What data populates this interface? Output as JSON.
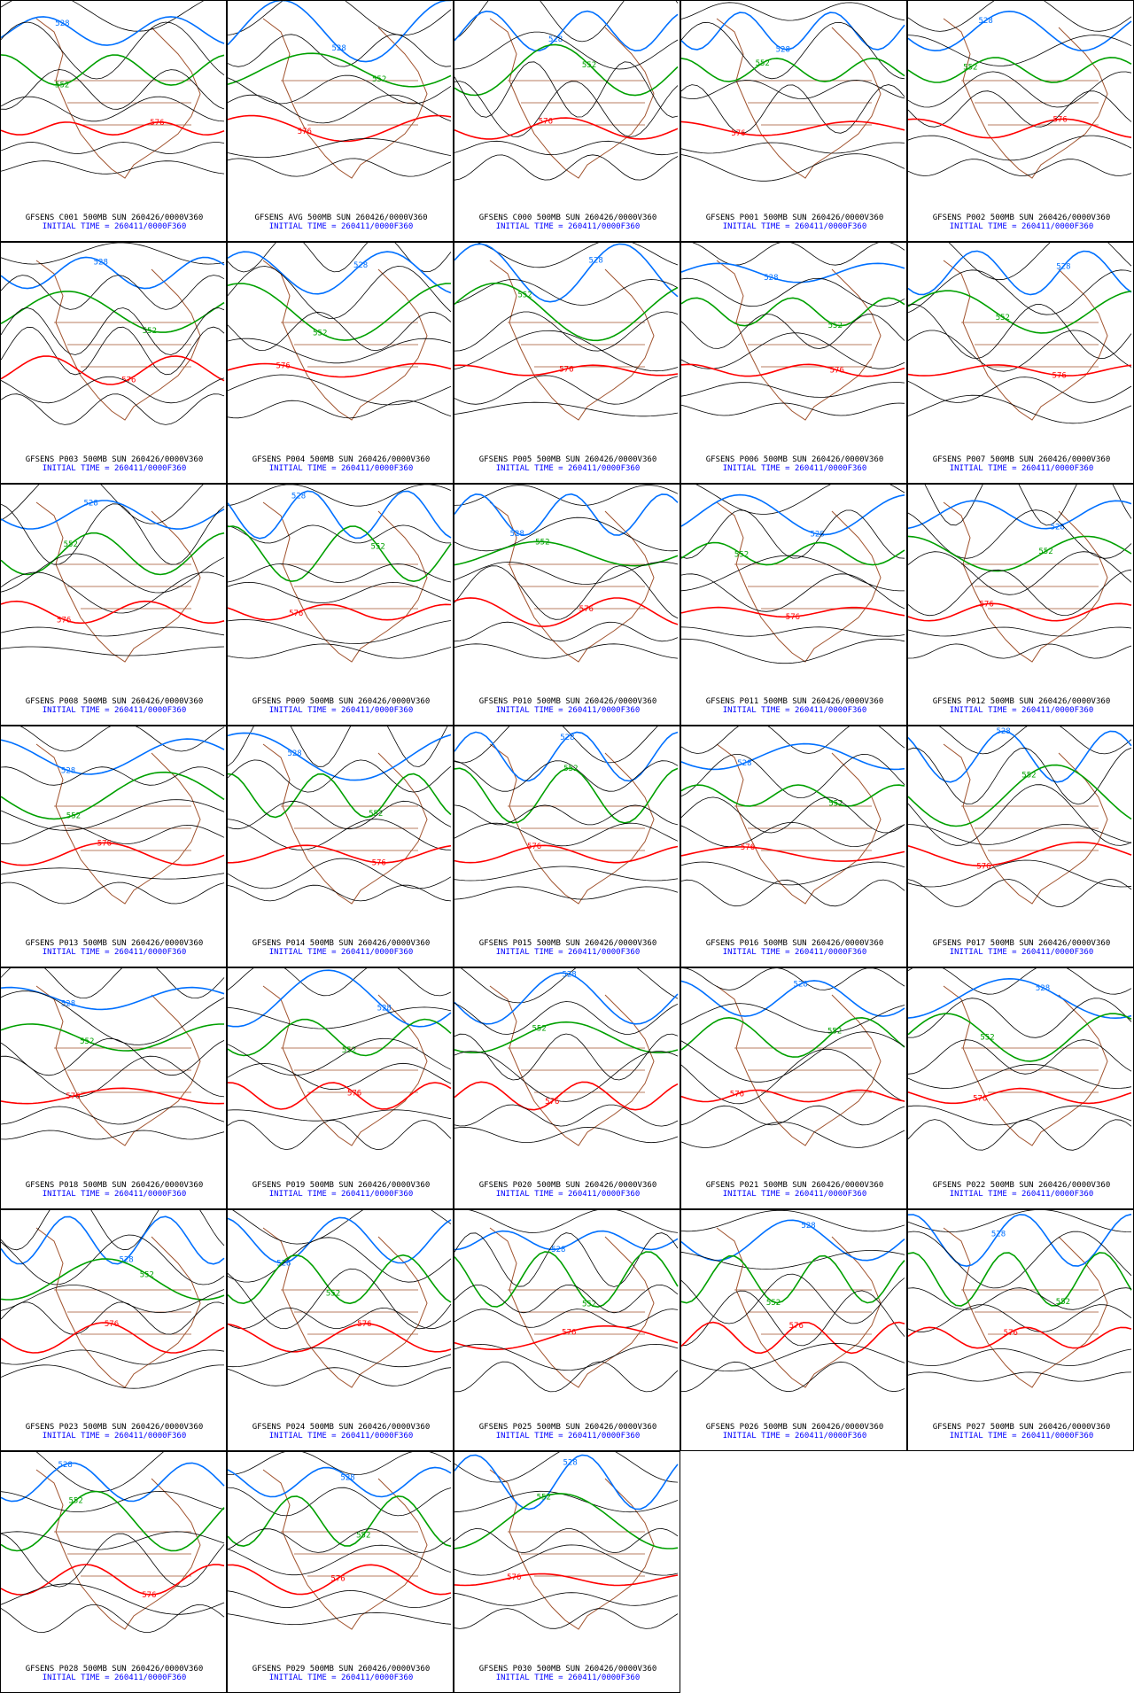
{
  "panels": [
    "GFSENS C001 500MB SUN 260426/0000V360",
    "GFSENS AVG 500MB SUN 260426/0000V360",
    "GFSENS C000 500MB SUN 260426/0000V360",
    "GFSENS P001 500MB SUN 260426/0000V360",
    "GFSENS P002 500MB SUN 260426/0000V360",
    "GFSENS P003 500MB SUN 260426/0000V360",
    "GFSENS P004 500MB SUN 260426/0000V360",
    "GFSENS P005 500MB SUN 260426/0000V360",
    "GFSENS P006 500MB SUN 260426/0000V360",
    "GFSENS P007 500MB SUN 260426/0000V360",
    "GFSENS P008 500MB SUN 260426/0000V360",
    "GFSENS P009 500MB SUN 260426/0000V360",
    "GFSENS P010 500MB SUN 260426/0000V360",
    "GFSENS P011 500MB SUN 260426/0000V360",
    "GFSENS P012 500MB SUN 260426/0000V360",
    "GFSENS P013 500MB SUN 260426/0000V360",
    "GFSENS P014 500MB SUN 260426/0000V360",
    "GFSENS P015 500MB SUN 260426/0000V360",
    "GFSENS P016 500MB SUN 260426/0000V360",
    "GFSENS P017 500MB SUN 260426/0000V360",
    "GFSENS P018 500MB SUN 260426/0000V360",
    "GFSENS P019 500MB SUN 260426/0000V360",
    "GFSENS P020 500MB SUN 260426/0000V360",
    "GFSENS P021 500MB SUN 260426/0000V360",
    "GFSENS P022 500MB SUN 260426/0000V360",
    "GFSENS P023 500MB SUN 260426/0000V360",
    "GFSENS P024 500MB SUN 260426/0000V360",
    "GFSENS P025 500MB SUN 260426/0000V360",
    "GFSENS P026 500MB SUN 260426/0000V360",
    "GFSENS P027 500MB SUN 260426/0000V360",
    "GFSENS P028 500MB SUN 260426/0000V360",
    "GFSENS P029 500MB SUN 260426/0000V360",
    "GFSENS P030 500MB SUN 260426/0000V360"
  ],
  "initial_time": "INITIAL TIME = 260411/0000F360",
  "contour_labels": [
    "528",
    "552",
    "576"
  ]
}
